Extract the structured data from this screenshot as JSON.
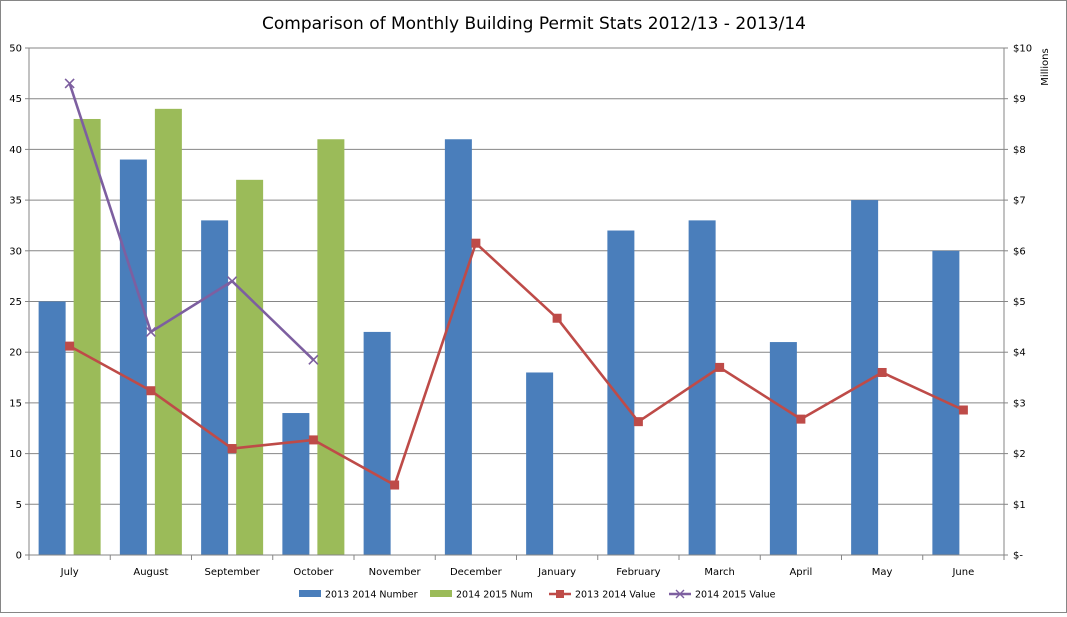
{
  "chart_data": {
    "type": "bar",
    "title": "Comparison of Monthly Building Permit Stats 2012/13  - 2013/14",
    "categories": [
      "July",
      "August",
      "September",
      "October",
      "November",
      "December",
      "January",
      "February",
      "March",
      "April",
      "May",
      "June"
    ],
    "y_left": {
      "min": 0,
      "max": 50,
      "step": 5,
      "ticks": [
        "0",
        "5",
        "10",
        "15",
        "20",
        "25",
        "30",
        "35",
        "40",
        "45",
        "50"
      ]
    },
    "y_right": {
      "min": 0,
      "max": 10,
      "step": 1,
      "label": "Millions",
      "ticks": [
        "$-",
        "$1",
        "$2",
        "$3",
        "$4",
        "$5",
        "$6",
        "$7",
        "$8",
        "$9",
        "$10"
      ]
    },
    "grid": true,
    "legend_position": "bottom",
    "series": [
      {
        "name": "2013 2014 Number",
        "kind": "bar",
        "axis": "left",
        "color": "#4a7ebb",
        "values": [
          25,
          39,
          33,
          14,
          22,
          41,
          18,
          32,
          33,
          21,
          35,
          30
        ]
      },
      {
        "name": "2014 2015 Num",
        "kind": "bar",
        "axis": "left",
        "color": "#9bbb59",
        "values": [
          43,
          44,
          37,
          41,
          null,
          null,
          null,
          null,
          null,
          null,
          null,
          null
        ]
      },
      {
        "name": "2013 2014 Value",
        "kind": "line",
        "marker": "square",
        "axis": "right",
        "color": "#be4b48",
        "values": [
          4.12,
          3.24,
          2.1,
          2.27,
          1.38,
          6.15,
          4.67,
          2.63,
          3.7,
          2.68,
          3.6,
          2.86
        ]
      },
      {
        "name": "2014 2015 Value",
        "kind": "line",
        "marker": "x",
        "axis": "right",
        "color": "#7d5fa0",
        "values": [
          9.3,
          4.4,
          5.4,
          3.85,
          null,
          null,
          null,
          null,
          null,
          null,
          null,
          null
        ]
      }
    ]
  }
}
